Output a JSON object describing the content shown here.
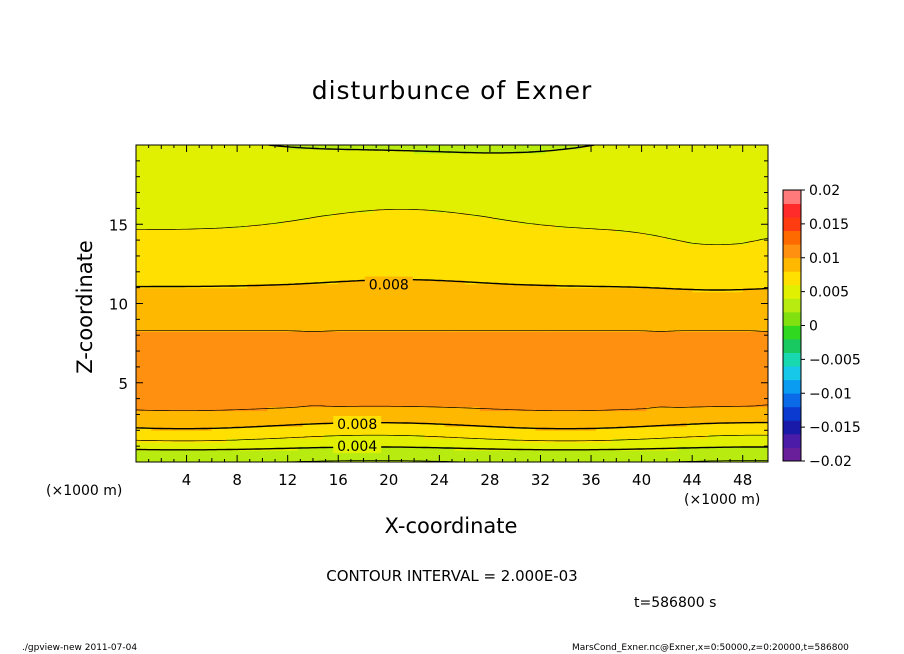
{
  "chart_data": {
    "type": "heatmap",
    "title": "disturbunce of Exner",
    "xlabel": "X-coordinate",
    "ylabel": "Z-coordinate",
    "x_unit_label": "(×1000 m)",
    "xlim": [
      0,
      50
    ],
    "ylim": [
      0,
      20
    ],
    "x_ticks": [
      4,
      8,
      12,
      16,
      20,
      24,
      28,
      32,
      36,
      40,
      44,
      48
    ],
    "y_ticks": [
      5,
      10,
      15
    ],
    "colorbar": {
      "levels": [
        -0.02,
        -0.018,
        -0.016,
        -0.014,
        -0.012,
        -0.01,
        -0.008,
        -0.006,
        -0.004,
        -0.002,
        0,
        0.002,
        0.004,
        0.006,
        0.008,
        0.01,
        0.012,
        0.014,
        0.016,
        0.018,
        0.02
      ],
      "tick_labels": [
        "−0.02",
        "−0.015",
        "−0.01",
        "−0.005",
        "0",
        "0.005",
        "0.01",
        "0.015",
        "0.02"
      ],
      "tick_values": [
        -0.02,
        -0.015,
        -0.01,
        -0.005,
        0,
        0.005,
        0.01,
        0.015,
        0.02
      ],
      "colors": [
        "#6a1f9a",
        "#4a1ca8",
        "#1a1aa8",
        "#0a3ad0",
        "#0a6ae8",
        "#0a9cf0",
        "#18c8e8",
        "#18d8b0",
        "#18c860",
        "#30d820",
        "#80e010",
        "#b8ec10",
        "#e0f000",
        "#ffe000",
        "#ffb800",
        "#ff9010",
        "#ff6a00",
        "#ff3c10",
        "#ff2a2a",
        "#ff7a7a"
      ]
    },
    "profile_z_km": [
      0.0,
      0.4,
      0.7,
      1.0,
      1.3,
      1.7,
      2.1,
      2.5,
      3.1,
      3.7,
      4.2,
      6.0,
      7.5,
      8.6,
      10.0,
      11.2,
      12.5,
      13.8,
      15.5,
      17.5,
      19.3,
      20.0
    ],
    "profile_values": [
      0.002,
      0.0025,
      0.0035,
      0.0045,
      0.0055,
      0.0065,
      0.0075,
      0.0085,
      0.0095,
      0.0105,
      0.011,
      0.0115,
      0.0105,
      0.0098,
      0.0088,
      0.0079,
      0.007,
      0.0063,
      0.0057,
      0.0048,
      0.0042,
      0.0038
    ],
    "contour_interval": 0.002,
    "contour_labels": [
      {
        "text": "0.008",
        "x": 20,
        "z": 11.2
      },
      {
        "text": "0.008",
        "x": 17.5,
        "z": 2.4
      },
      {
        "text": "0.004",
        "x": 17.5,
        "z": 1.0
      }
    ]
  },
  "annotations": {
    "contour_interval_text": "CONTOUR INTERVAL = 2.000E-03",
    "time_text": "t=586800 s",
    "footer_left": "./gpview-new   2011-07-04",
    "footer_right": "MarsCond_Exner.nc@Exner,x=0:50000,z=0:20000,t=586800"
  }
}
